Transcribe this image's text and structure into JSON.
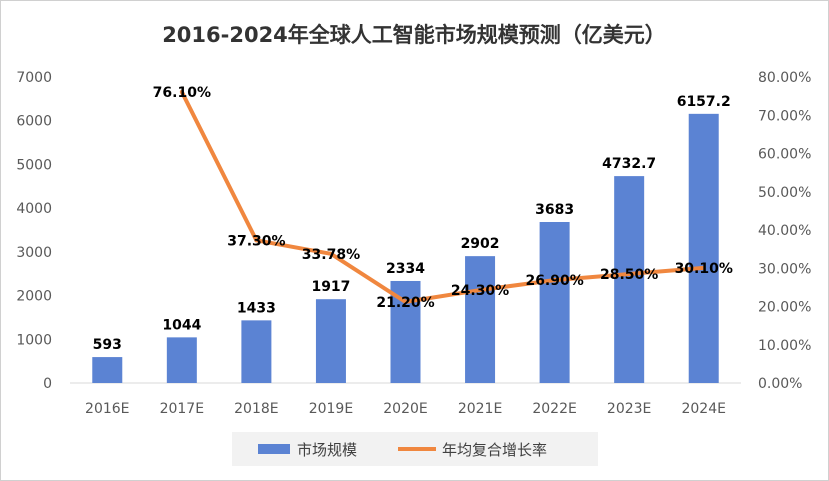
{
  "chart_data": {
    "type": "bar+line",
    "title": "2016-2024年全球人工智能市场规模预测（亿美元）",
    "categories": [
      "2016E",
      "2017E",
      "2018E",
      "2019E",
      "2020E",
      "2021E",
      "2022E",
      "2023E",
      "2024E"
    ],
    "series": [
      {
        "name": "市场规模",
        "type": "bar",
        "axis": "left",
        "color": "#5B83D3",
        "values": [
          593,
          1044,
          1433,
          1917,
          2334,
          2902,
          3683,
          4732.7,
          6157.2
        ],
        "labels": [
          "593",
          "1044",
          "1433",
          "1917",
          "2334",
          "2902",
          "3683",
          "4732.7",
          "6157.2"
        ]
      },
      {
        "name": "年均复合增长率",
        "type": "line",
        "axis": "right",
        "color": "#F0873F",
        "values": [
          null,
          76.1,
          37.3,
          33.78,
          21.2,
          24.3,
          26.9,
          28.5,
          30.1
        ],
        "labels": [
          "",
          "76.10%",
          "37.30%",
          "33.78%",
          "21.20%",
          "24.30%",
          "26.90%",
          "28.50%",
          "30.10%"
        ]
      }
    ],
    "y_left": {
      "min": 0,
      "max": 7000,
      "ticks": [
        "0",
        "1000",
        "2000",
        "3000",
        "4000",
        "5000",
        "6000",
        "7000"
      ]
    },
    "y_right": {
      "min": 0,
      "max": 80,
      "ticks": [
        "0.00%",
        "10.00%",
        "20.00%",
        "30.00%",
        "40.00%",
        "50.00%",
        "60.00%",
        "70.00%",
        "80.00%"
      ]
    },
    "grid": false,
    "legend": "bottom"
  }
}
